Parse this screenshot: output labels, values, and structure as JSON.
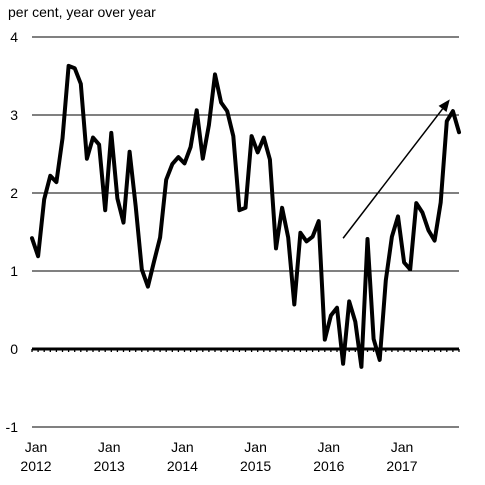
{
  "chart_data": {
    "type": "line",
    "ylabel": "per cent, year over year",
    "ylim": [
      -1,
      4
    ],
    "yticks": [
      -1,
      0,
      1,
      2,
      3,
      4
    ],
    "xlim": [
      0,
      70
    ],
    "x_tick_labels": [
      {
        "month_index": 0,
        "line1": "Jan",
        "line2": "2012"
      },
      {
        "month_index": 12,
        "line1": "Jan",
        "line2": "2013"
      },
      {
        "month_index": 24,
        "line1": "Jan",
        "line2": "2014"
      },
      {
        "month_index": 36,
        "line1": "Jan",
        "line2": "2015"
      },
      {
        "month_index": 48,
        "line1": "Jan",
        "line2": "2016"
      },
      {
        "month_index": 60,
        "line1": "Jan",
        "line2": "2017"
      }
    ],
    "grid": true,
    "colors": {
      "line": "#000000",
      "grid": "#000000"
    },
    "series": [
      {
        "x": [
          0,
          1,
          2,
          3,
          4,
          5,
          6,
          7,
          8,
          9,
          10,
          11,
          12,
          13,
          14,
          15,
          16,
          17,
          18,
          19,
          20,
          21,
          22,
          23,
          24,
          25,
          26,
          27,
          28,
          29,
          30,
          31,
          32,
          33,
          34,
          35,
          36,
          37,
          38,
          39,
          40,
          41,
          42,
          43,
          44,
          45,
          46,
          47,
          48,
          49,
          50,
          51,
          52,
          53,
          54,
          55,
          56,
          57,
          58,
          59,
          60,
          61,
          62,
          63,
          64,
          65,
          66,
          67,
          68,
          69,
          70
        ],
        "values": [
          1.42,
          1.19,
          1.92,
          2.22,
          2.14,
          2.7,
          3.63,
          3.6,
          3.4,
          2.44,
          2.71,
          2.62,
          1.78,
          2.77,
          1.93,
          1.62,
          2.53,
          1.83,
          1.02,
          0.8,
          1.12,
          1.43,
          2.17,
          2.37,
          2.46,
          2.38,
          2.59,
          3.06,
          2.44,
          2.87,
          3.52,
          3.16,
          3.05,
          2.73,
          1.78,
          1.81,
          2.73,
          2.52,
          2.71,
          2.43,
          1.29,
          1.81,
          1.43,
          0.57,
          1.49,
          1.38,
          1.44,
          1.64,
          0.12,
          0.43,
          0.53,
          -0.19,
          0.61,
          0.35,
          -0.23,
          1.41,
          0.13,
          -0.14,
          0.88,
          1.44,
          1.7,
          1.11,
          1.02,
          1.87,
          1.75,
          1.52,
          1.39,
          1.88,
          2.92,
          3.05,
          2.78
        ]
      }
    ],
    "annotation": {
      "type": "arrow",
      "from": [
        51,
        1.42
      ],
      "to": [
        68.5,
        3.2
      ]
    }
  }
}
